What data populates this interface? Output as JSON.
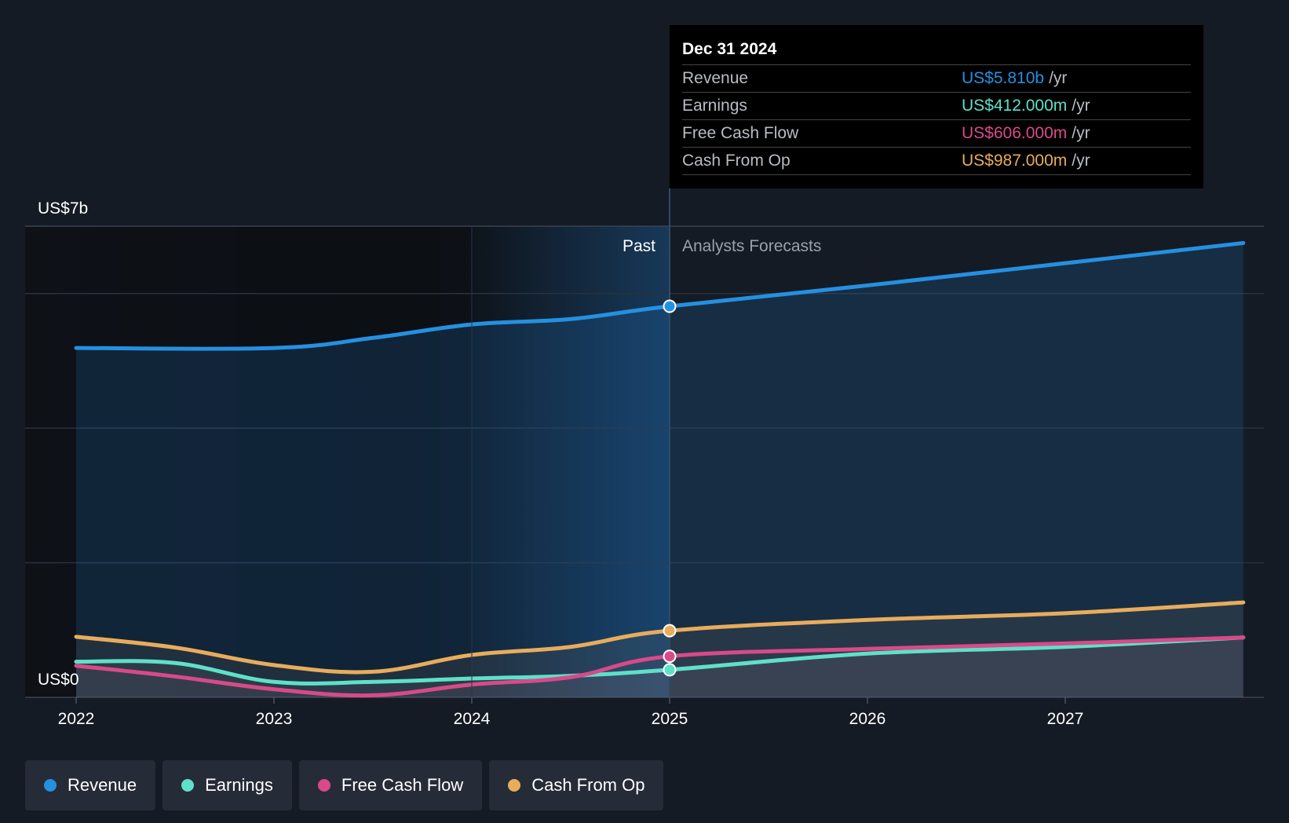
{
  "chart_data": {
    "type": "area",
    "title": "",
    "xlabel": "",
    "ylabel": "",
    "ylim": [
      0,
      7
    ],
    "y_unit": "US$ billions",
    "y_axis_labels": [
      "US$7b",
      "US$0"
    ],
    "x_ticks": [
      "2022",
      "2023",
      "2024",
      "2025",
      "2026",
      "2027"
    ],
    "x_range": [
      2022,
      2027.9
    ],
    "divider_x": 2025,
    "past_label": "Past",
    "forecast_label": "Analysts Forecasts",
    "series": [
      {
        "name": "Revenue",
        "color": "#2590e0",
        "points": [
          [
            2022,
            5.19
          ],
          [
            2023,
            5.19
          ],
          [
            2023.5,
            5.34
          ],
          [
            2024,
            5.54
          ],
          [
            2024.5,
            5.62
          ],
          [
            2025,
            5.81
          ],
          [
            2026,
            6.12
          ],
          [
            2027,
            6.45
          ],
          [
            2027.9,
            6.75
          ]
        ]
      },
      {
        "name": "Earnings",
        "color": "#5fe0c9",
        "points": [
          [
            2022,
            0.53
          ],
          [
            2022.5,
            0.51
          ],
          [
            2023,
            0.23
          ],
          [
            2023.5,
            0.23
          ],
          [
            2024,
            0.28
          ],
          [
            2024.5,
            0.32
          ],
          [
            2025,
            0.41
          ],
          [
            2026,
            0.65
          ],
          [
            2027,
            0.75
          ],
          [
            2027.9,
            0.89
          ]
        ]
      },
      {
        "name": "Free Cash Flow",
        "color": "#d84a8a",
        "points": [
          [
            2022,
            0.47
          ],
          [
            2022.5,
            0.31
          ],
          [
            2023,
            0.12
          ],
          [
            2023.5,
            0.03
          ],
          [
            2024,
            0.19
          ],
          [
            2024.5,
            0.3
          ],
          [
            2025,
            0.61
          ],
          [
            2026,
            0.72
          ],
          [
            2027,
            0.8
          ],
          [
            2027.9,
            0.89
          ]
        ]
      },
      {
        "name": "Cash From Op",
        "color": "#e8ac5c",
        "points": [
          [
            2022,
            0.9
          ],
          [
            2022.5,
            0.74
          ],
          [
            2023,
            0.48
          ],
          [
            2023.5,
            0.38
          ],
          [
            2024,
            0.63
          ],
          [
            2024.5,
            0.75
          ],
          [
            2025,
            0.99
          ],
          [
            2026,
            1.15
          ],
          [
            2027,
            1.25
          ],
          [
            2027.9,
            1.41
          ]
        ]
      }
    ],
    "tooltip": {
      "date": "Dec 31 2024",
      "rows": [
        {
          "label": "Revenue",
          "value": "US$5.810b",
          "unit": "/yr",
          "color": "#2590e0"
        },
        {
          "label": "Earnings",
          "value": "US$412.000m",
          "unit": "/yr",
          "color": "#5fe0c9"
        },
        {
          "label": "Free Cash Flow",
          "value": "US$606.000m",
          "unit": "/yr",
          "color": "#d84a8a"
        },
        {
          "label": "Cash From Op",
          "value": "US$987.000m",
          "unit": "/yr",
          "color": "#e8ac5c"
        }
      ]
    }
  },
  "legend": [
    {
      "label": "Revenue",
      "color": "#2590e0"
    },
    {
      "label": "Earnings",
      "color": "#5fe0c9"
    },
    {
      "label": "Free Cash Flow",
      "color": "#d84a8a"
    },
    {
      "label": "Cash From Op",
      "color": "#e8ac5c"
    }
  ]
}
